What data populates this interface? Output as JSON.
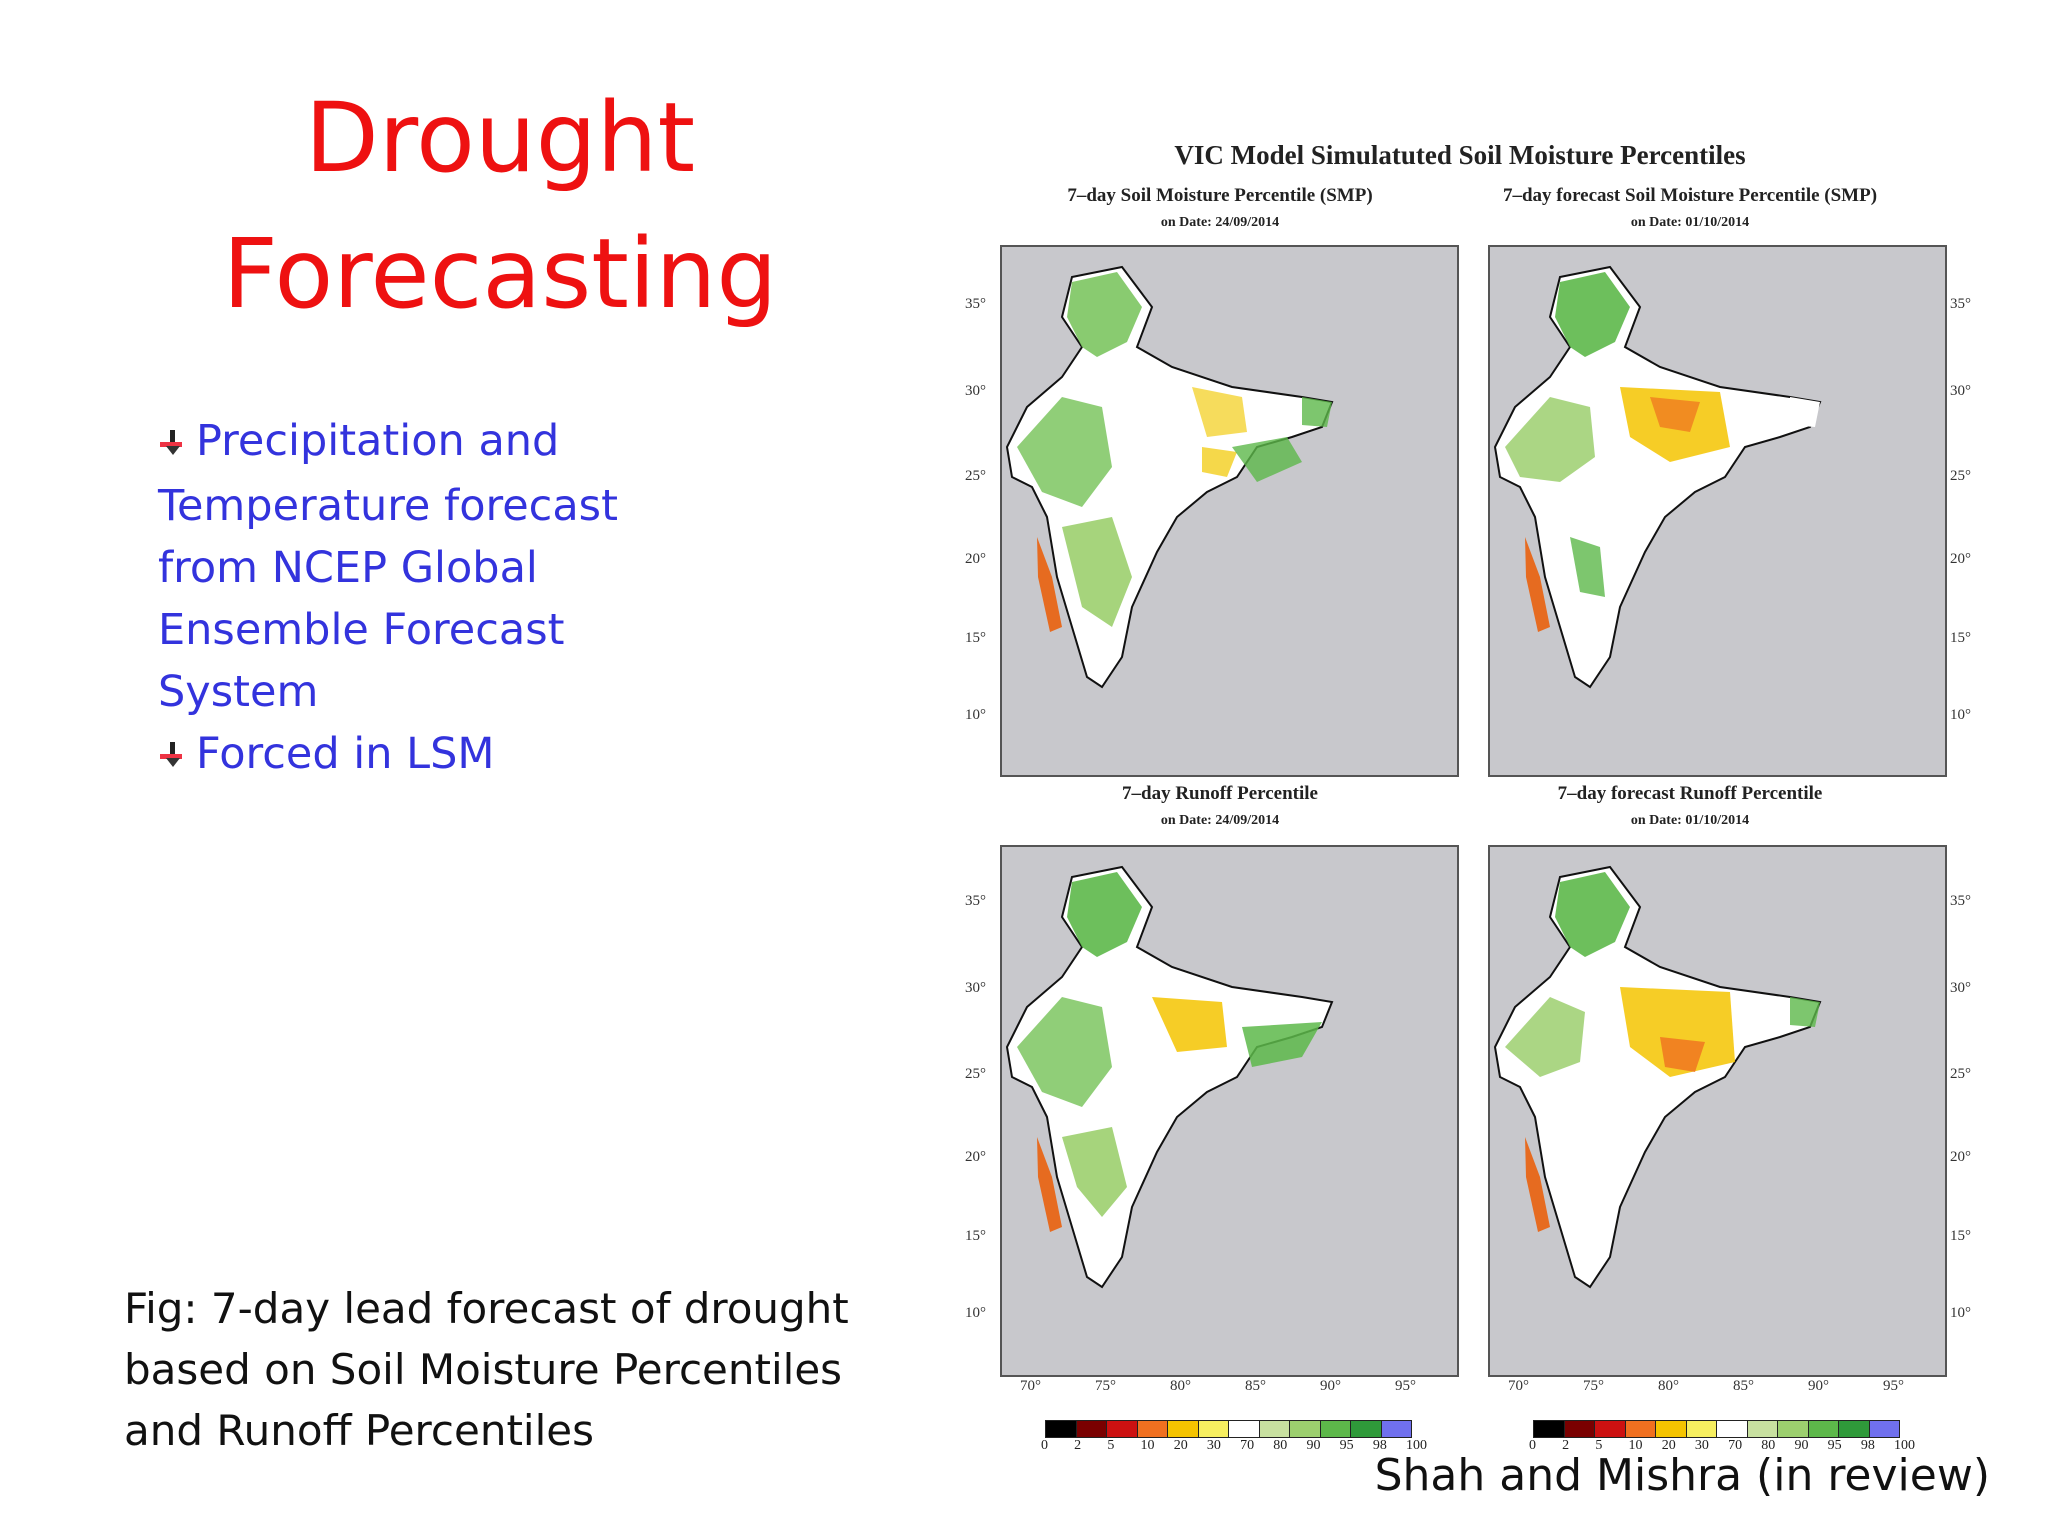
{
  "slide": {
    "title_lines": [
      "Drought",
      "Forecasting"
    ],
    "bullets": [
      {
        "text_lines": [
          "Precipitation and",
          "Temperature forecast",
          "from NCEP Global",
          "Ensemble Forecast",
          "System"
        ]
      },
      {
        "text_lines": [
          "Forced in LSM"
        ]
      }
    ],
    "caption_lines": [
      "Fig: 7-day lead forecast of drought",
      "based on Soil Moisture Percentiles",
      "and Runoff Percentiles"
    ],
    "credit": "Shah and Mishra (in review)"
  },
  "figure": {
    "title": "VIC Model Simulatuted Soil Moisture Percentiles",
    "panels": [
      {
        "title": "7–day Soil Moisture Percentile (SMP)",
        "date": "on Date: 24/09/2014"
      },
      {
        "title": "7–day forecast Soil Moisture Percentile (SMP)",
        "date": "on Date: 01/10/2014"
      },
      {
        "title": "7–day Runoff Percentile",
        "date": "on Date: 24/09/2014"
      },
      {
        "title": "7–day forecast Runoff Percentile",
        "date": "on Date: 01/10/2014"
      }
    ],
    "lat_ticks": [
      "35°",
      "30°",
      "25°",
      "20°",
      "15°",
      "10°"
    ],
    "lon_ticks": [
      "70°",
      "75°",
      "80°",
      "85°",
      "90°",
      "95°"
    ],
    "colorbar": {
      "labels": [
        "0",
        "2",
        "5",
        "10",
        "20",
        "30",
        "70",
        "80",
        "90",
        "95",
        "98",
        "100"
      ],
      "colors": [
        "#000000",
        "#7a0000",
        "#cc1111",
        "#f07020",
        "#f5c400",
        "#f7ef60",
        "#ffffff",
        "#c8e0a0",
        "#9ccf6e",
        "#5db84a",
        "#2f9a3a",
        "#7070ee"
      ]
    }
  }
}
